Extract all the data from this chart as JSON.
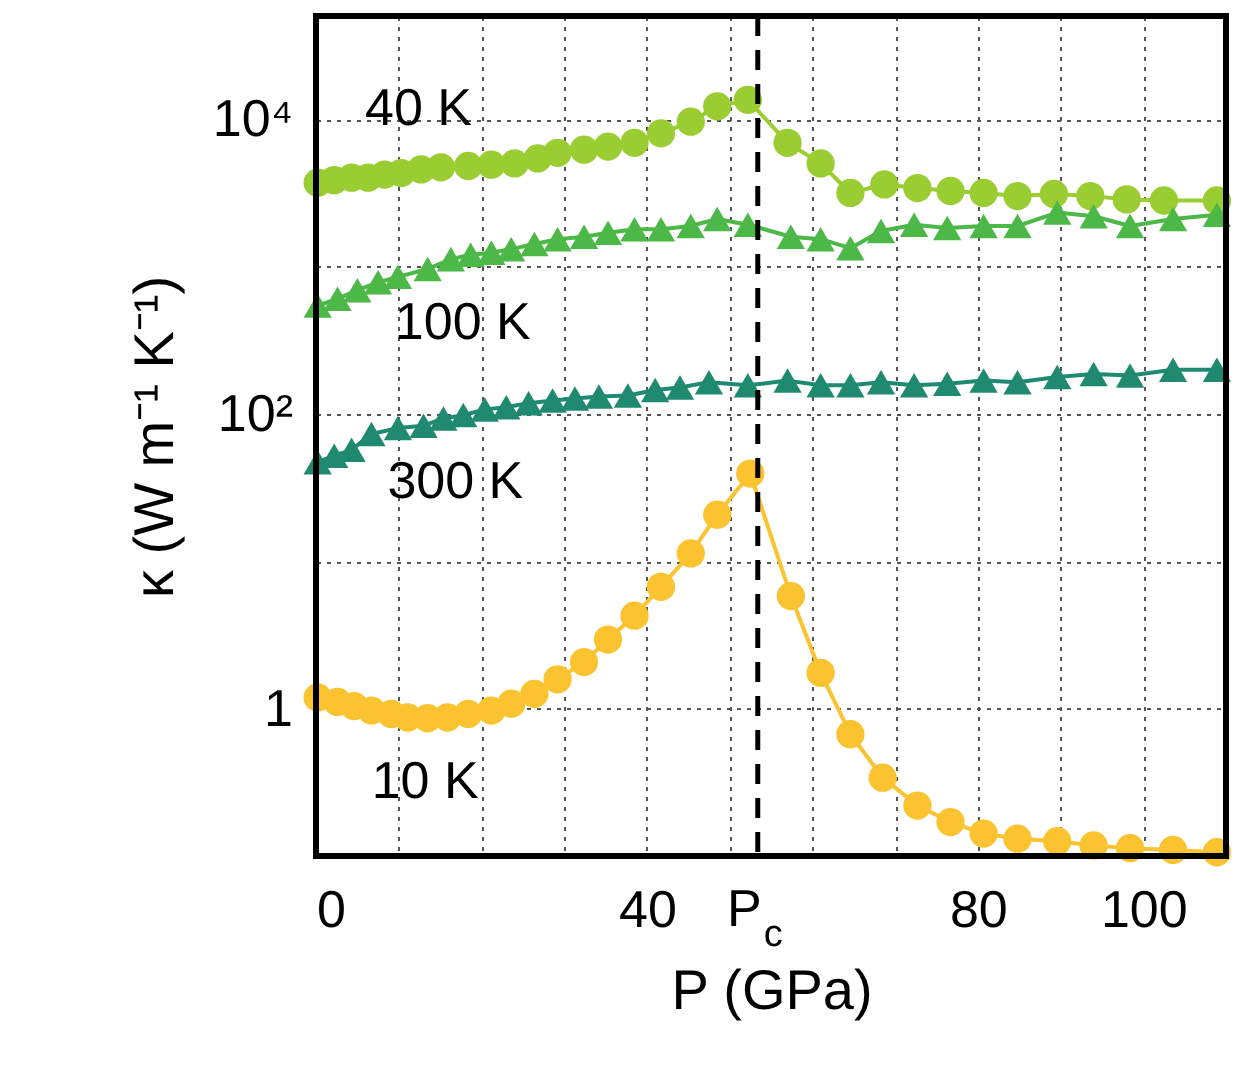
{
  "chart_data": {
    "type": "line",
    "xlabel": "P (GPa)",
    "ylabel": "κ (W m⁻¹ K⁻¹)",
    "log": "y",
    "xlim": [
      0,
      110
    ],
    "ylim": [
      0.1,
      50000
    ],
    "xticks": [
      0,
      {
        "value": 10,
        "label": null
      },
      {
        "value": 20,
        "label": null
      },
      {
        "value": 30,
        "label": null
      },
      40,
      {
        "value": 50,
        "label": null
      },
      {
        "value": 60,
        "label": null
      },
      {
        "value": 70,
        "label": null
      },
      80,
      {
        "value": 90,
        "label": null
      },
      100
    ],
    "yticks": [
      {
        "value": 0.1,
        "label": null
      },
      1,
      {
        "value": 10,
        "label": null
      },
      {
        "value": 100,
        "label": "10²"
      },
      {
        "value": 1000,
        "label": null
      },
      {
        "value": 10000,
        "label": "10⁴"
      }
    ],
    "grid": true,
    "line_style": "solid",
    "ref_lines": [
      {
        "axis": "x",
        "value": 53.4,
        "label": "P$_{c}$",
        "line_style": "dashed",
        "color": "#000000"
      }
    ],
    "series": [
      {
        "name": "40 K",
        "color": "#9acd32",
        "marker": "circle",
        "x": [
          0.2,
          2.2,
          4.3,
          6.3,
          8.3,
          10.3,
          12.7,
          15.1,
          18.4,
          21.2,
          24,
          26.8,
          29.2,
          32.4,
          35.3,
          38.5,
          41.7,
          45.3,
          48.5,
          52.2,
          57,
          61,
          64.6,
          68.7,
          72.7,
          76.7,
          80.7,
          84.8,
          89.2,
          93.6,
          98,
          102.5,
          108.9
        ],
        "values": [
          3700,
          3850,
          4000,
          4000,
          4200,
          4300,
          4550,
          4700,
          4800,
          4900,
          5000,
          5400,
          5900,
          6200,
          6500,
          6900,
          8000,
          9600,
          12200,
          13500,
          6900,
          5000,
          3150,
          3600,
          3400,
          3250,
          3150,
          3000,
          3100,
          3000,
          2850,
          2800,
          2800
        ]
      },
      {
        "name": "100 K",
        "color": "#4cb847",
        "marker": "triangle",
        "x": [
          0.2,
          2.6,
          5,
          7.5,
          9.9,
          13.5,
          16.3,
          18.7,
          21.2,
          23.6,
          26.4,
          29.2,
          32.4,
          35.3,
          38.5,
          41.7,
          45.3,
          48.5,
          52.2,
          57.4,
          61,
          64.6,
          68.3,
          72.3,
          76.3,
          80.7,
          84.8,
          89.6,
          94,
          98.4,
          103.6,
          108.9
        ],
        "values": [
          542,
          603,
          690,
          780,
          850,
          960,
          1120,
          1200,
          1240,
          1310,
          1420,
          1530,
          1590,
          1690,
          1790,
          1790,
          1880,
          2100,
          1920,
          1590,
          1530,
          1330,
          1740,
          1920,
          1820,
          1880,
          1880,
          2320,
          2190,
          1880,
          2100,
          2240
        ]
      },
      {
        "name": "300 K",
        "color": "#1f8a70",
        "marker": "triangle",
        "x": [
          0.2,
          2.2,
          4.3,
          6.7,
          9.9,
          13,
          15.4,
          17.8,
          20.4,
          23,
          25.7,
          28.6,
          31.3,
          34.2,
          37.7,
          41,
          44,
          47.5,
          52.2,
          57,
          61,
          64.6,
          68.3,
          72.3,
          76.3,
          80.7,
          84.8,
          89.6,
          94,
          98.4,
          103.6,
          108.9
        ],
        "values": [
          47,
          52,
          57,
          73,
          80,
          83,
          93,
          98,
          107,
          111,
          118,
          123,
          127,
          131,
          133,
          145,
          151,
          164,
          156,
          168,
          156,
          156,
          164,
          156,
          160,
          168,
          164,
          178,
          186,
          182,
          199,
          199
        ]
      },
      {
        "name": "10 K",
        "color": "#fbc330",
        "marker": "circle",
        "x": [
          0.2,
          2.6,
          4.6,
          6.7,
          9.1,
          11.1,
          13.5,
          15.9,
          18.4,
          21.2,
          23.6,
          26.4,
          29.2,
          32.4,
          35.3,
          38.5,
          41.7,
          45.3,
          48.5,
          52.5,
          57.4,
          61,
          64.6,
          68.5,
          72.7,
          76.7,
          80.7,
          84.8,
          89.6,
          94,
          98.4,
          103.6,
          108.9
        ],
        "values": [
          1.19,
          1.11,
          1.04,
          0.97,
          0.92,
          0.87,
          0.86,
          0.87,
          0.92,
          0.97,
          1.08,
          1.26,
          1.58,
          2.07,
          2.94,
          4.27,
          6.7,
          11.3,
          20.7,
          39.3,
          5.8,
          1.75,
          0.67,
          0.34,
          0.22,
          0.17,
          0.142,
          0.131,
          0.126,
          0.118,
          0.113,
          0.11,
          0.106
        ]
      }
    ]
  }
}
